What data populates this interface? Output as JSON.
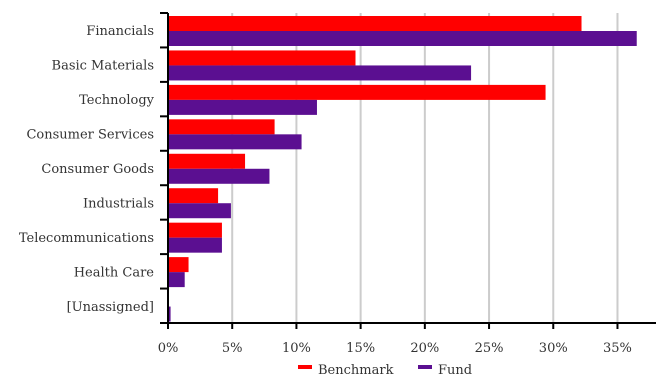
{
  "chart_data": {
    "type": "bar",
    "orientation": "horizontal",
    "categories": [
      "Financials",
      "Basic Materials",
      "Technology",
      "Consumer Services",
      "Consumer Goods",
      "Industrials",
      "Telecommunications",
      "Health Care",
      "[Unassigned]"
    ],
    "series": [
      {
        "name": "Benchmark",
        "color": "#ff0000",
        "values": [
          32.2,
          14.6,
          29.4,
          8.3,
          6.0,
          3.9,
          4.2,
          1.6,
          0.0
        ]
      },
      {
        "name": "Fund",
        "color": "#5b0f91",
        "values": [
          36.5,
          23.6,
          11.6,
          10.4,
          7.9,
          4.9,
          4.2,
          1.3,
          0.2
        ]
      }
    ],
    "xlim": [
      0,
      38
    ],
    "xticks": [
      0,
      5,
      10,
      15,
      20,
      25,
      30,
      35
    ],
    "xtick_labels": [
      "0%",
      "5%",
      "10%",
      "15%",
      "20%",
      "25%",
      "30%",
      "35%"
    ],
    "grid": "vertical",
    "legend": {
      "position": "bottom-center",
      "entries": [
        "Benchmark",
        "Fund"
      ]
    }
  }
}
